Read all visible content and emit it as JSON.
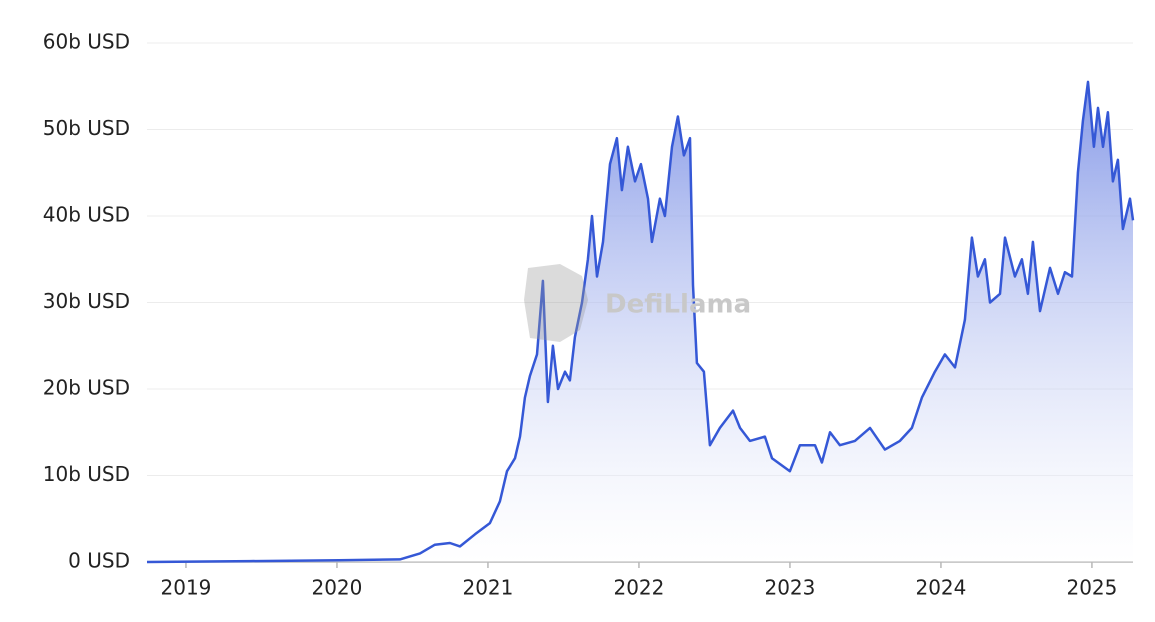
{
  "chart_data": {
    "type": "area",
    "watermark": "DefiLlama",
    "x": [
      2018.742,
      2019.424,
      2020.013,
      2020.417,
      2020.55,
      2020.649,
      2020.748,
      2020.815,
      2020.914,
      2021.013,
      2021.079,
      2021.126,
      2021.179,
      2021.212,
      2021.245,
      2021.278,
      2021.325,
      2021.364,
      2021.397,
      2021.43,
      2021.464,
      2021.51,
      2021.543,
      2021.576,
      2021.623,
      2021.662,
      2021.689,
      2021.722,
      2021.762,
      2021.808,
      2021.854,
      2021.887,
      2021.927,
      2021.974,
      2022.013,
      2022.06,
      2022.086,
      2022.139,
      2022.172,
      2022.219,
      2022.258,
      2022.298,
      2022.338,
      2022.358,
      2022.384,
      2022.43,
      2022.47,
      2022.536,
      2022.623,
      2022.669,
      2022.735,
      2022.834,
      2022.881,
      2023.0,
      2023.066,
      2023.166,
      2023.212,
      2023.265,
      2023.331,
      2023.43,
      2023.53,
      2023.629,
      2023.728,
      2023.808,
      2023.874,
      2023.96,
      2024.026,
      2024.093,
      2024.159,
      2024.205,
      2024.245,
      2024.291,
      2024.325,
      2024.391,
      2024.424,
      2024.49,
      2024.536,
      2024.576,
      2024.609,
      2024.656,
      2024.722,
      2024.775,
      2024.821,
      2024.868,
      2024.907,
      2024.94,
      2024.974,
      2025.013,
      2025.04,
      2025.073,
      2025.106,
      2025.139,
      2025.172,
      2025.205,
      2025.252,
      2025.272
    ],
    "series": [
      {
        "color": "#3558d6",
        "values": [
          0,
          0.1,
          0.2,
          0.3,
          1.0,
          2.0,
          2.2,
          1.8,
          3.2,
          4.5,
          7,
          10.5,
          12,
          14.5,
          19,
          21.5,
          24,
          32.5,
          18.5,
          25,
          20,
          22,
          21,
          26,
          30,
          35,
          40,
          33,
          37,
          46,
          49,
          43,
          48,
          44,
          46,
          42,
          37,
          42,
          40,
          48,
          51.5,
          47,
          49,
          32,
          23,
          22,
          13.5,
          15.5,
          17.5,
          15.5,
          14,
          14.5,
          12,
          10.5,
          13.5,
          13.5,
          11.5,
          15,
          13.5,
          14,
          15.5,
          13,
          14,
          15.5,
          19,
          22,
          24,
          22.5,
          28,
          37.5,
          33,
          35,
          30,
          31,
          37.5,
          33,
          35,
          31,
          37,
          29,
          34,
          31,
          33.5,
          33,
          45,
          51,
          55.5,
          48,
          52.5,
          48,
          52,
          44,
          46.5,
          38.5,
          42,
          39.5
        ]
      }
    ],
    "xlim": [
      2018.742,
      2025.272
    ],
    "xticks": [
      2019,
      2020,
      2021,
      2022,
      2023,
      2024,
      2025
    ],
    "ylim": [
      0,
      60
    ],
    "yticks": [
      {
        "value": 0,
        "label": "0 USD"
      },
      {
        "value": 10,
        "label": "10b USD"
      },
      {
        "value": 20,
        "label": "20b USD"
      },
      {
        "value": 30,
        "label": "30b USD"
      },
      {
        "value": 40,
        "label": "40b USD"
      },
      {
        "value": 50,
        "label": "50b USD"
      },
      {
        "value": 60,
        "label": "60b USD"
      }
    ],
    "grid": true
  }
}
